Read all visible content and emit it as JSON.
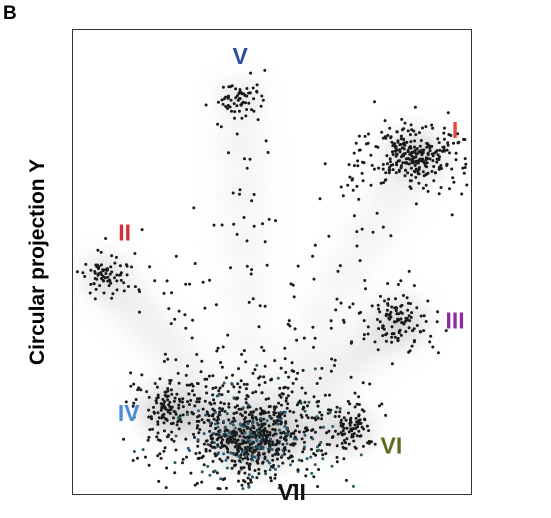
{
  "panel_letter": "B",
  "chart_data": {
    "type": "scatter",
    "ylabel": "Circular projection Y",
    "xlabel": "",
    "title": "",
    "xlim": [
      0,
      1
    ],
    "ylim": [
      0,
      1
    ],
    "grid": false,
    "legend": "none",
    "point_color": "#1a1a1a",
    "density_color": "#9a9a9a",
    "clusters": [
      {
        "label": "I",
        "color": "#e0473f",
        "center": [
          0.86,
          0.73
        ],
        "spread": 0.05,
        "density": "high",
        "approx_points": 300
      },
      {
        "label": "II",
        "color": "#d62f2f",
        "center": [
          0.08,
          0.47
        ],
        "spread": 0.035,
        "density": "medium",
        "approx_points": 70
      },
      {
        "label": "III",
        "color": "#8a2c9e",
        "center": [
          0.82,
          0.37
        ],
        "spread": 0.045,
        "density": "medium",
        "approx_points": 110
      },
      {
        "label": "IV",
        "color": "#4a8fd4",
        "center": [
          0.24,
          0.18
        ],
        "spread": 0.05,
        "density": "medium",
        "approx_points": 120
      },
      {
        "label": "V",
        "color": "#2f4ea0",
        "center": [
          0.42,
          0.85
        ],
        "spread": 0.03,
        "density": "medium",
        "approx_points": 60
      },
      {
        "label": "VI",
        "color": "#5a6b1f",
        "center": [
          0.7,
          0.14
        ],
        "spread": 0.035,
        "density": "medium",
        "approx_points": 90
      },
      {
        "label": "VII",
        "color": "#111111",
        "center": [
          0.45,
          0.12
        ],
        "spread": 0.07,
        "density": "very high",
        "approx_points": 700
      }
    ],
    "background_scatter_points": 350
  }
}
